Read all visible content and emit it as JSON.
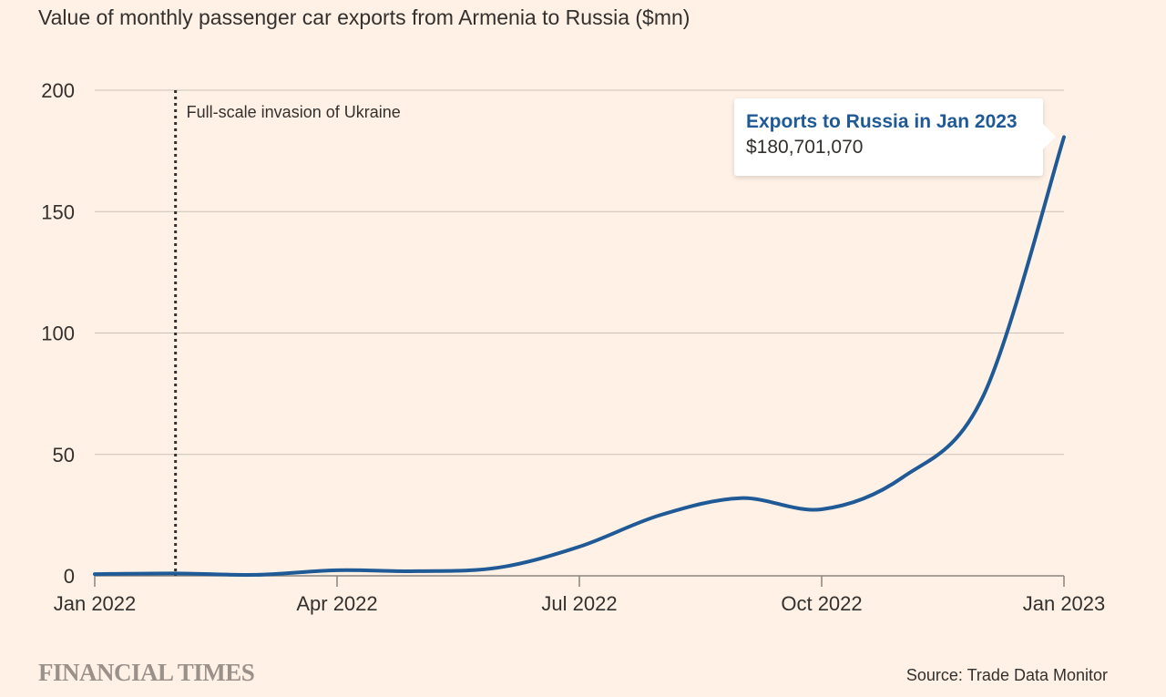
{
  "chart_data": {
    "type": "line",
    "title": "Value of monthly passenger car exports from Armenia to Russia ($mn)",
    "xlabel": "",
    "ylabel": "",
    "ylim": [
      0,
      200
    ],
    "yticks": [
      0,
      50,
      100,
      150,
      200
    ],
    "xtick_labels": [
      "Jan 2022",
      "Apr 2022",
      "Jul 2022",
      "Oct 2022",
      "Jan 2023"
    ],
    "x": [
      "Jan 2022",
      "Feb 2022",
      "Mar 2022",
      "Apr 2022",
      "May 2022",
      "Jun 2022",
      "Jul 2022",
      "Aug 2022",
      "Sep 2022",
      "Oct 2022",
      "Nov 2022",
      "Dec 2022",
      "Jan 2023"
    ],
    "series": [
      {
        "name": "Exports to Russia",
        "color": "#1f5a96",
        "values": [
          0.7,
          1.0,
          0.4,
          2.3,
          1.9,
          3.4,
          12,
          25,
          32,
          27.4,
          40.5,
          74,
          180.7
        ]
      }
    ],
    "grid": true,
    "annotations": [
      {
        "x_month_index": 1,
        "text": "Full-scale invasion of Ukraine"
      }
    ],
    "tooltip": {
      "title": "Exports to Russia in Jan 2023",
      "value": "$180,701,070"
    }
  },
  "footer": {
    "brand": "FINANCIAL TIMES",
    "source": "Source: Trade Data Monitor"
  }
}
